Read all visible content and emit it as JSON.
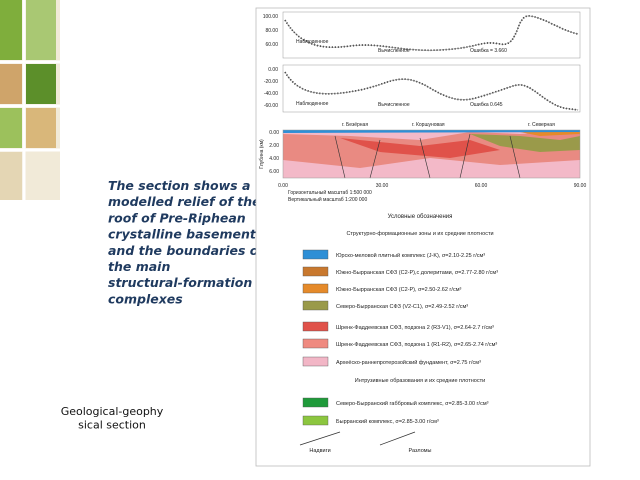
{
  "caption": {
    "lines": [
      "The section shows a",
      "modelled relief of the",
      "roof of Pre-Riphean",
      "crystalline basement",
      "and the boundaries of",
      "the main",
      "structural-formation",
      "complexes"
    ]
  },
  "label": {
    "lines": [
      "Geological-geophy",
      "sical section"
    ]
  },
  "figure": {
    "gravity_panel": {
      "yticks": [
        "100.00",
        "80.00",
        "60.00"
      ],
      "observed": "Наблюденное",
      "computed": "Вычисленное",
      "error": "Ошибка = 3.660"
    },
    "magnetic_panel": {
      "yticks": [
        "0.00",
        "-20.00",
        "-40.00",
        "-60.00"
      ],
      "observed": "Наблюденное",
      "computed": "Вычисленное",
      "error": "Ошибка 0.645"
    },
    "section": {
      "peaks": [
        "г. Безёрная",
        "г. Коршуновая",
        "г. Северная"
      ],
      "depth_label": "Глубина (км)",
      "depth_ticks": [
        "0.00",
        "2.00",
        "4.00",
        "6.00"
      ],
      "x_ticks": [
        "0.00",
        "30.00",
        "60.00",
        "90.00"
      ],
      "scales": [
        "Горизонтальный масштаб 1:500 000",
        "Вертикальный масштаб 1:200 000"
      ]
    },
    "legend": {
      "title": "Условные обозначения",
      "subtitle": "Структурно-формационные зоны и их средние плотности",
      "zones": [
        {
          "color": "#2e8fd6",
          "label": "Юрско-меловой плитный комплекс (J-K), σ=2.10-2.25 г/см³"
        },
        {
          "color": "#c8782e",
          "label": "Южно-Бырранская СФЗ (C2-P),с долеритами, σ=2.77-2.80 г/см³"
        },
        {
          "color": "#e58a2a",
          "label": "Южно-Бырранская СФЗ (C2-P), σ=2.50-2.62 г/см³"
        },
        {
          "color": "#9a9a4a",
          "label": "Северо-Бырранская СФЗ (V2-C1), σ=2.49-2.52 г/см³"
        },
        {
          "color": "#e0524a",
          "label": "Шренк-Фаддеевская СФЗ, подзона 2 (R3-V1), σ=2.64-2.7 г/см³"
        },
        {
          "color": "#ef8a80",
          "label": "Шренк-Фаддеевская СФЗ, подзона 1 (R1-R2), σ=2.65-2.74 г/см³"
        },
        {
          "color": "#f2b6c6",
          "label": "Археёско-раннепротерозойский фундамент, σ=2.75 г/см³"
        }
      ],
      "intrusive_subtitle": "Интрузивные образования и их средние плотности",
      "intrusives": [
        {
          "color": "#1f9a3a",
          "label": "Северо-Бырранский габбровый комплекс, σ=2.85-3.00 г/см³"
        },
        {
          "color": "#8cc63f",
          "label": "Бырранский комплекс, σ=2.85-3.00 г/см³"
        }
      ],
      "lines": [
        "Надвиги",
        "Разломы"
      ]
    }
  }
}
